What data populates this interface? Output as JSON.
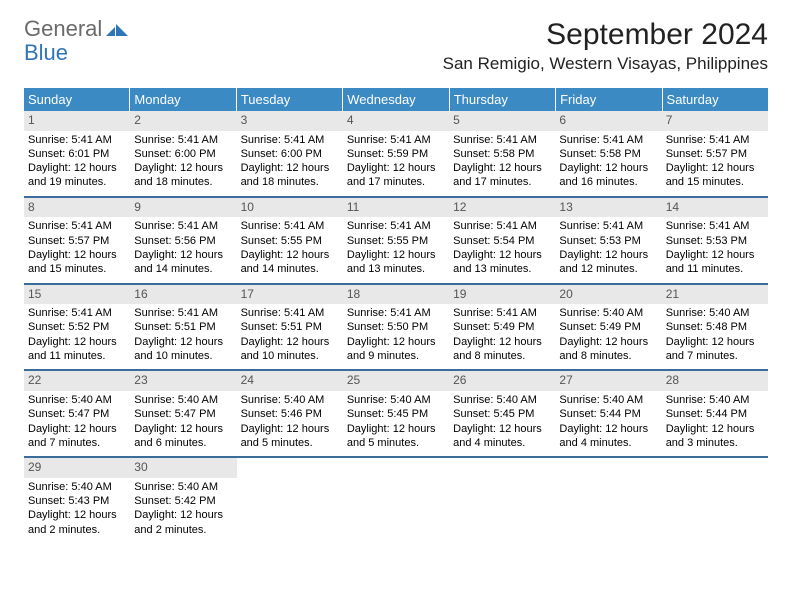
{
  "logo": {
    "part1": "General",
    "part2": "Blue"
  },
  "title": "September 2024",
  "location": "San Remigio, Western Visayas, Philippines",
  "colors": {
    "header_bg": "#3b8ac4",
    "header_text": "#ffffff",
    "daynum_bg": "#e8e8e8",
    "row_border": "#3a6d9a",
    "logo_gray": "#6b6b6b",
    "logo_blue": "#2f76b8"
  },
  "weekdays": [
    "Sunday",
    "Monday",
    "Tuesday",
    "Wednesday",
    "Thursday",
    "Friday",
    "Saturday"
  ],
  "weeks": [
    [
      {
        "n": "1",
        "sr": "Sunrise: 5:41 AM",
        "ss": "Sunset: 6:01 PM",
        "d1": "Daylight: 12 hours",
        "d2": "and 19 minutes."
      },
      {
        "n": "2",
        "sr": "Sunrise: 5:41 AM",
        "ss": "Sunset: 6:00 PM",
        "d1": "Daylight: 12 hours",
        "d2": "and 18 minutes."
      },
      {
        "n": "3",
        "sr": "Sunrise: 5:41 AM",
        "ss": "Sunset: 6:00 PM",
        "d1": "Daylight: 12 hours",
        "d2": "and 18 minutes."
      },
      {
        "n": "4",
        "sr": "Sunrise: 5:41 AM",
        "ss": "Sunset: 5:59 PM",
        "d1": "Daylight: 12 hours",
        "d2": "and 17 minutes."
      },
      {
        "n": "5",
        "sr": "Sunrise: 5:41 AM",
        "ss": "Sunset: 5:58 PM",
        "d1": "Daylight: 12 hours",
        "d2": "and 17 minutes."
      },
      {
        "n": "6",
        "sr": "Sunrise: 5:41 AM",
        "ss": "Sunset: 5:58 PM",
        "d1": "Daylight: 12 hours",
        "d2": "and 16 minutes."
      },
      {
        "n": "7",
        "sr": "Sunrise: 5:41 AM",
        "ss": "Sunset: 5:57 PM",
        "d1": "Daylight: 12 hours",
        "d2": "and 15 minutes."
      }
    ],
    [
      {
        "n": "8",
        "sr": "Sunrise: 5:41 AM",
        "ss": "Sunset: 5:57 PM",
        "d1": "Daylight: 12 hours",
        "d2": "and 15 minutes."
      },
      {
        "n": "9",
        "sr": "Sunrise: 5:41 AM",
        "ss": "Sunset: 5:56 PM",
        "d1": "Daylight: 12 hours",
        "d2": "and 14 minutes."
      },
      {
        "n": "10",
        "sr": "Sunrise: 5:41 AM",
        "ss": "Sunset: 5:55 PM",
        "d1": "Daylight: 12 hours",
        "d2": "and 14 minutes."
      },
      {
        "n": "11",
        "sr": "Sunrise: 5:41 AM",
        "ss": "Sunset: 5:55 PM",
        "d1": "Daylight: 12 hours",
        "d2": "and 13 minutes."
      },
      {
        "n": "12",
        "sr": "Sunrise: 5:41 AM",
        "ss": "Sunset: 5:54 PM",
        "d1": "Daylight: 12 hours",
        "d2": "and 13 minutes."
      },
      {
        "n": "13",
        "sr": "Sunrise: 5:41 AM",
        "ss": "Sunset: 5:53 PM",
        "d1": "Daylight: 12 hours",
        "d2": "and 12 minutes."
      },
      {
        "n": "14",
        "sr": "Sunrise: 5:41 AM",
        "ss": "Sunset: 5:53 PM",
        "d1": "Daylight: 12 hours",
        "d2": "and 11 minutes."
      }
    ],
    [
      {
        "n": "15",
        "sr": "Sunrise: 5:41 AM",
        "ss": "Sunset: 5:52 PM",
        "d1": "Daylight: 12 hours",
        "d2": "and 11 minutes."
      },
      {
        "n": "16",
        "sr": "Sunrise: 5:41 AM",
        "ss": "Sunset: 5:51 PM",
        "d1": "Daylight: 12 hours",
        "d2": "and 10 minutes."
      },
      {
        "n": "17",
        "sr": "Sunrise: 5:41 AM",
        "ss": "Sunset: 5:51 PM",
        "d1": "Daylight: 12 hours",
        "d2": "and 10 minutes."
      },
      {
        "n": "18",
        "sr": "Sunrise: 5:41 AM",
        "ss": "Sunset: 5:50 PM",
        "d1": "Daylight: 12 hours",
        "d2": "and 9 minutes."
      },
      {
        "n": "19",
        "sr": "Sunrise: 5:41 AM",
        "ss": "Sunset: 5:49 PM",
        "d1": "Daylight: 12 hours",
        "d2": "and 8 minutes."
      },
      {
        "n": "20",
        "sr": "Sunrise: 5:40 AM",
        "ss": "Sunset: 5:49 PM",
        "d1": "Daylight: 12 hours",
        "d2": "and 8 minutes."
      },
      {
        "n": "21",
        "sr": "Sunrise: 5:40 AM",
        "ss": "Sunset: 5:48 PM",
        "d1": "Daylight: 12 hours",
        "d2": "and 7 minutes."
      }
    ],
    [
      {
        "n": "22",
        "sr": "Sunrise: 5:40 AM",
        "ss": "Sunset: 5:47 PM",
        "d1": "Daylight: 12 hours",
        "d2": "and 7 minutes."
      },
      {
        "n": "23",
        "sr": "Sunrise: 5:40 AM",
        "ss": "Sunset: 5:47 PM",
        "d1": "Daylight: 12 hours",
        "d2": "and 6 minutes."
      },
      {
        "n": "24",
        "sr": "Sunrise: 5:40 AM",
        "ss": "Sunset: 5:46 PM",
        "d1": "Daylight: 12 hours",
        "d2": "and 5 minutes."
      },
      {
        "n": "25",
        "sr": "Sunrise: 5:40 AM",
        "ss": "Sunset: 5:45 PM",
        "d1": "Daylight: 12 hours",
        "d2": "and 5 minutes."
      },
      {
        "n": "26",
        "sr": "Sunrise: 5:40 AM",
        "ss": "Sunset: 5:45 PM",
        "d1": "Daylight: 12 hours",
        "d2": "and 4 minutes."
      },
      {
        "n": "27",
        "sr": "Sunrise: 5:40 AM",
        "ss": "Sunset: 5:44 PM",
        "d1": "Daylight: 12 hours",
        "d2": "and 4 minutes."
      },
      {
        "n": "28",
        "sr": "Sunrise: 5:40 AM",
        "ss": "Sunset: 5:44 PM",
        "d1": "Daylight: 12 hours",
        "d2": "and 3 minutes."
      }
    ],
    [
      {
        "n": "29",
        "sr": "Sunrise: 5:40 AM",
        "ss": "Sunset: 5:43 PM",
        "d1": "Daylight: 12 hours",
        "d2": "and 2 minutes."
      },
      {
        "n": "30",
        "sr": "Sunrise: 5:40 AM",
        "ss": "Sunset: 5:42 PM",
        "d1": "Daylight: 12 hours",
        "d2": "and 2 minutes."
      },
      {
        "empty": true
      },
      {
        "empty": true
      },
      {
        "empty": true
      },
      {
        "empty": true
      },
      {
        "empty": true
      }
    ]
  ]
}
